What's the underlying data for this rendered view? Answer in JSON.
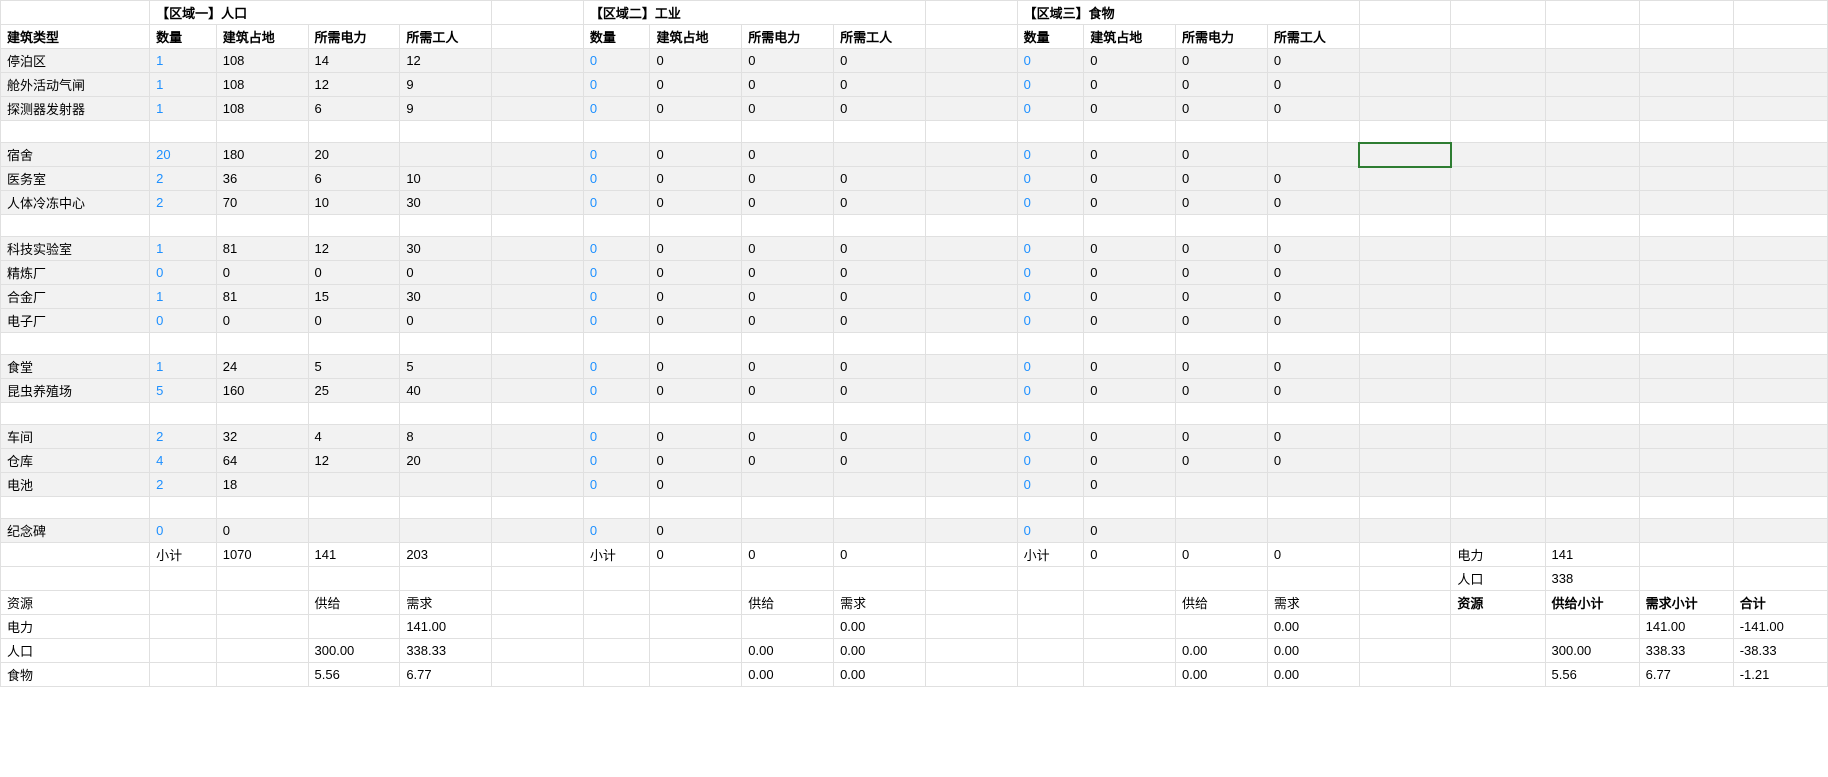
{
  "headers": {
    "building_type": "建筑类型",
    "qty": "数量",
    "land": "建筑占地",
    "power": "所需电力",
    "workers": "所需工人",
    "zone1": "【区域一】人口",
    "zone2": "【区域二】工业",
    "zone3": "【区域三】食物",
    "subtotal": "小计",
    "resource": "资源",
    "supply": "供给",
    "demand": "需求",
    "power_label": "电力",
    "pop_label": "人口",
    "food_label": "食物",
    "supply_subtotal": "供给小计",
    "demand_subtotal": "需求小计",
    "total": "合计"
  },
  "buildings": [
    {
      "name": "停泊区",
      "z1": [
        "1",
        "108",
        "14",
        "12"
      ],
      "z2": [
        "0",
        "0",
        "0",
        "0"
      ],
      "z3": [
        "0",
        "0",
        "0",
        "0"
      ],
      "shaded": true
    },
    {
      "name": "舱外活动气闸",
      "z1": [
        "1",
        "108",
        "12",
        "9"
      ],
      "z2": [
        "0",
        "0",
        "0",
        "0"
      ],
      "z3": [
        "0",
        "0",
        "0",
        "0"
      ],
      "shaded": true
    },
    {
      "name": "探测器发射器",
      "z1": [
        "1",
        "108",
        "6",
        "9"
      ],
      "z2": [
        "0",
        "0",
        "0",
        "0"
      ],
      "z3": [
        "0",
        "0",
        "0",
        "0"
      ],
      "shaded": true
    },
    {
      "name": "",
      "z1": [
        "",
        "",
        "",
        ""
      ],
      "z2": [
        "",
        "",
        "",
        ""
      ],
      "z3": [
        "",
        "",
        "",
        ""
      ],
      "shaded": false
    },
    {
      "name": "宿舍",
      "z1": [
        "20",
        "180",
        "20",
        ""
      ],
      "z2": [
        "0",
        "0",
        "0",
        ""
      ],
      "z3": [
        "0",
        "0",
        "0",
        ""
      ],
      "shaded": true,
      "selected_cell": true
    },
    {
      "name": "医务室",
      "z1": [
        "2",
        "36",
        "6",
        "10"
      ],
      "z2": [
        "0",
        "0",
        "0",
        "0"
      ],
      "z3": [
        "0",
        "0",
        "0",
        "0"
      ],
      "shaded": true
    },
    {
      "name": "人体冷冻中心",
      "z1": [
        "2",
        "70",
        "10",
        "30"
      ],
      "z2": [
        "0",
        "0",
        "0",
        "0"
      ],
      "z3": [
        "0",
        "0",
        "0",
        "0"
      ],
      "shaded": true
    },
    {
      "name": "",
      "z1": [
        "",
        "",
        "",
        ""
      ],
      "z2": [
        "",
        "",
        "",
        ""
      ],
      "z3": [
        "",
        "",
        "",
        ""
      ],
      "shaded": false
    },
    {
      "name": "科技实验室",
      "z1": [
        "1",
        "81",
        "12",
        "30"
      ],
      "z2": [
        "0",
        "0",
        "0",
        "0"
      ],
      "z3": [
        "0",
        "0",
        "0",
        "0"
      ],
      "shaded": true
    },
    {
      "name": "精炼厂",
      "z1": [
        "0",
        "0",
        "0",
        "0"
      ],
      "z2": [
        "0",
        "0",
        "0",
        "0"
      ],
      "z3": [
        "0",
        "0",
        "0",
        "0"
      ],
      "shaded": true
    },
    {
      "name": "合金厂",
      "z1": [
        "1",
        "81",
        "15",
        "30"
      ],
      "z2": [
        "0",
        "0",
        "0",
        "0"
      ],
      "z3": [
        "0",
        "0",
        "0",
        "0"
      ],
      "shaded": true
    },
    {
      "name": "电子厂",
      "z1": [
        "0",
        "0",
        "0",
        "0"
      ],
      "z2": [
        "0",
        "0",
        "0",
        "0"
      ],
      "z3": [
        "0",
        "0",
        "0",
        "0"
      ],
      "shaded": true
    },
    {
      "name": "",
      "z1": [
        "",
        "",
        "",
        ""
      ],
      "z2": [
        "",
        "",
        "",
        ""
      ],
      "z3": [
        "",
        "",
        "",
        ""
      ],
      "shaded": false
    },
    {
      "name": "食堂",
      "z1": [
        "1",
        "24",
        "5",
        "5"
      ],
      "z2": [
        "0",
        "0",
        "0",
        "0"
      ],
      "z3": [
        "0",
        "0",
        "0",
        "0"
      ],
      "shaded": true
    },
    {
      "name": "昆虫养殖场",
      "z1": [
        "5",
        "160",
        "25",
        "40"
      ],
      "z2": [
        "0",
        "0",
        "0",
        "0"
      ],
      "z3": [
        "0",
        "0",
        "0",
        "0"
      ],
      "shaded": true
    },
    {
      "name": "",
      "z1": [
        "",
        "",
        "",
        ""
      ],
      "z2": [
        "",
        "",
        "",
        ""
      ],
      "z3": [
        "",
        "",
        "",
        ""
      ],
      "shaded": false
    },
    {
      "name": "车间",
      "z1": [
        "2",
        "32",
        "4",
        "8"
      ],
      "z2": [
        "0",
        "0",
        "0",
        "0"
      ],
      "z3": [
        "0",
        "0",
        "0",
        "0"
      ],
      "shaded": true
    },
    {
      "name": "仓库",
      "z1": [
        "4",
        "64",
        "12",
        "20"
      ],
      "z2": [
        "0",
        "0",
        "0",
        "0"
      ],
      "z3": [
        "0",
        "0",
        "0",
        "0"
      ],
      "shaded": true
    },
    {
      "name": "电池",
      "z1": [
        "2",
        "18",
        "",
        ""
      ],
      "z2": [
        "0",
        "0",
        "",
        ""
      ],
      "z3": [
        "0",
        "0",
        "",
        ""
      ],
      "shaded": true
    },
    {
      "name": "",
      "z1": [
        "",
        "",
        "",
        ""
      ],
      "z2": [
        "",
        "",
        "",
        ""
      ],
      "z3": [
        "",
        "",
        "",
        ""
      ],
      "shaded": false
    },
    {
      "name": "纪念碑",
      "z1": [
        "0",
        "0",
        "",
        ""
      ],
      "z2": [
        "0",
        "0",
        "",
        ""
      ],
      "z3": [
        "0",
        "0",
        "",
        ""
      ],
      "shaded": true
    }
  ],
  "subtotals": {
    "z1": [
      "1070",
      "141",
      "203"
    ],
    "z2": [
      "0",
      "0",
      "0"
    ],
    "z3": [
      "0",
      "0",
      "0"
    ]
  },
  "right_summary": {
    "power": "141",
    "pop": "338"
  },
  "resources": {
    "rows": [
      {
        "label": "电力",
        "z1": {
          "supply": "",
          "demand": "141.00"
        },
        "z2": {
          "supply": "",
          "demand": "0.00"
        },
        "z3": {
          "supply": "",
          "demand": "0.00"
        },
        "tot": {
          "supply": "",
          "demand": "141.00",
          "total": "-141.00"
        }
      },
      {
        "label": "人口",
        "z1": {
          "supply": "300.00",
          "demand": "338.33"
        },
        "z2": {
          "supply": "0.00",
          "demand": "0.00"
        },
        "z3": {
          "supply": "0.00",
          "demand": "0.00"
        },
        "tot": {
          "supply": "300.00",
          "demand": "338.33",
          "total": "-38.33"
        }
      },
      {
        "label": "食物",
        "z1": {
          "supply": "5.56",
          "demand": "6.77"
        },
        "z2": {
          "supply": "0.00",
          "demand": "0.00"
        },
        "z3": {
          "supply": "0.00",
          "demand": "0.00"
        },
        "tot": {
          "supply": "5.56",
          "demand": "6.77",
          "total": "-1.21"
        }
      }
    ]
  },
  "colors": {
    "blue": "#1e90ff",
    "shaded_bg": "#f2f2f2",
    "grid": "#e0e0e0",
    "selected_border": "#2e7d32",
    "text": "#000000",
    "bg": "#ffffff"
  }
}
